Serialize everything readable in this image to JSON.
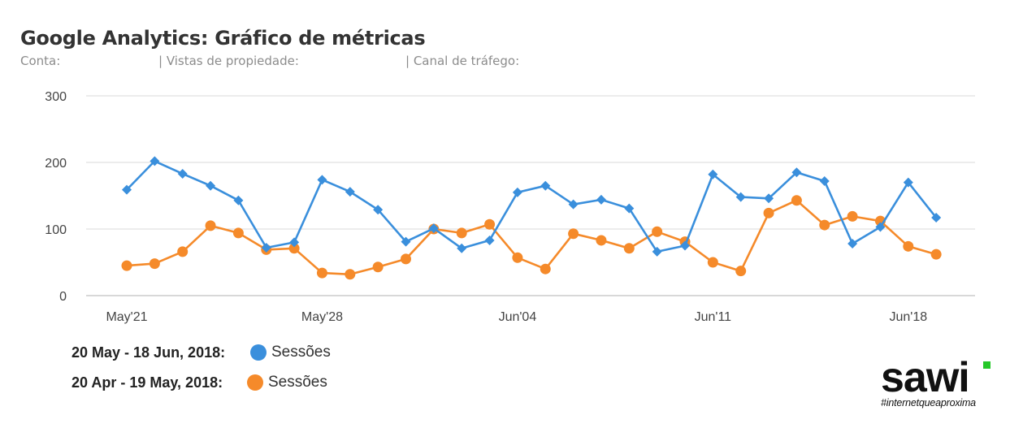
{
  "header": {
    "title": "Google Analytics: Gráfico de métricas",
    "conta_label": "Conta:",
    "vistas_label": "| Vistas de propiedade:",
    "canal_label": "| Canal de tráfego:"
  },
  "chart_data": {
    "type": "line",
    "categories": [
      "May'21",
      "",
      "",
      "",
      "",
      "",
      "",
      "May'28",
      "",
      "",
      "",
      "",
      "",
      "",
      "Jun'04",
      "",
      "",
      "",
      "",
      "",
      "",
      "Jun'11",
      "",
      "",
      "",
      "",
      "",
      "",
      "Jun'18",
      ""
    ],
    "ylim": [
      0,
      300
    ],
    "yticks": [
      0,
      100,
      200,
      300
    ],
    "grid": true,
    "series": [
      {
        "name": "Sessões",
        "period": "20 May - 18 Jun, 2018:",
        "color": "#3a8fdc",
        "marker": "diamond",
        "values": [
          159,
          202,
          183,
          165,
          143,
          72,
          80,
          174,
          156,
          129,
          81,
          101,
          71,
          83,
          155,
          165,
          137,
          144,
          131,
          66,
          75,
          182,
          148,
          146,
          185,
          172,
          78,
          103,
          170,
          117
        ]
      },
      {
        "name": "Sessões",
        "period": "20 Apr - 19 May, 2018:",
        "color": "#f58a2a",
        "marker": "circle",
        "values": [
          45,
          48,
          66,
          105,
          94,
          69,
          71,
          34,
          32,
          43,
          55,
          100,
          94,
          107,
          57,
          40,
          93,
          83,
          71,
          96,
          81,
          50,
          37,
          124,
          143,
          106,
          119,
          112,
          74,
          62
        ]
      }
    ]
  },
  "logo": {
    "name": "sawi",
    "tagline": "#internetqueaproxima",
    "accent": "#25c829"
  }
}
